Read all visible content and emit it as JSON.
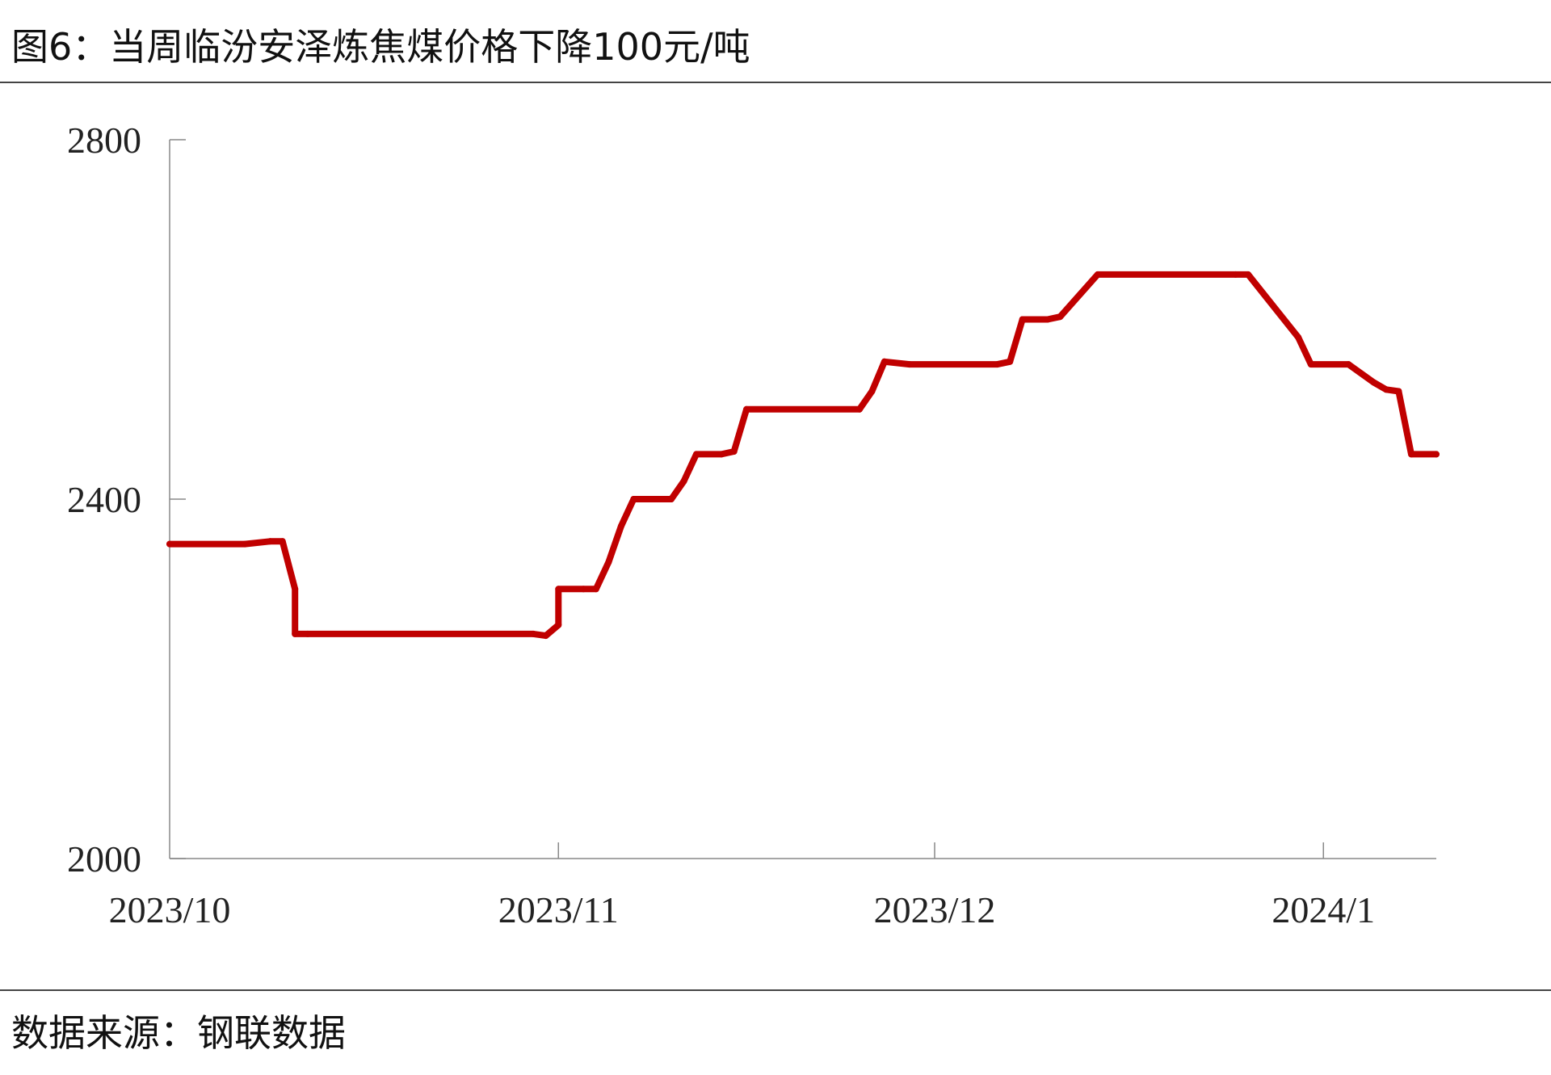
{
  "figure": {
    "title": "图6：当周临汾安泽炼焦煤价格下降100元/吨",
    "source": "数据来源：钢联数据"
  },
  "chart_data": {
    "type": "line",
    "title": "",
    "xlabel": "",
    "ylabel": "",
    "ylim": [
      2000,
      2800
    ],
    "yticks": [
      2000,
      2400,
      2800
    ],
    "xlim": [
      "2023-10-01",
      "2024-01-10"
    ],
    "xticks": [
      {
        "date": "2023-10-01",
        "label": "2023/10"
      },
      {
        "date": "2023-11-01",
        "label": "2023/11"
      },
      {
        "date": "2023-12-01",
        "label": "2023/12"
      },
      {
        "date": "2024-01-01",
        "label": "2024/1"
      }
    ],
    "grid": false,
    "legend": "none",
    "series": [
      {
        "color": "#c00000",
        "points": [
          [
            "2023-10-01",
            2350
          ],
          [
            "2023-10-07",
            2350
          ],
          [
            "2023-10-09",
            2353
          ],
          [
            "2023-10-10",
            2353
          ],
          [
            "2023-10-11",
            2300
          ],
          [
            "2023-10-11",
            2250
          ],
          [
            "2023-10-12",
            2250
          ],
          [
            "2023-10-30",
            2250
          ],
          [
            "2023-10-31",
            2248
          ],
          [
            "2023-11-01",
            2260
          ],
          [
            "2023-11-01",
            2300
          ],
          [
            "2023-11-03",
            2300
          ],
          [
            "2023-11-04",
            2300
          ],
          [
            "2023-11-05",
            2330
          ],
          [
            "2023-11-06",
            2370
          ],
          [
            "2023-11-07",
            2400
          ],
          [
            "2023-11-10",
            2400
          ],
          [
            "2023-11-11",
            2420
          ],
          [
            "2023-11-12",
            2450
          ],
          [
            "2023-11-14",
            2450
          ],
          [
            "2023-11-15",
            2453
          ],
          [
            "2023-11-16",
            2500
          ],
          [
            "2023-11-25",
            2500
          ],
          [
            "2023-11-26",
            2520
          ],
          [
            "2023-11-27",
            2553
          ],
          [
            "2023-11-29",
            2550
          ],
          [
            "2023-12-06",
            2550
          ],
          [
            "2023-12-07",
            2553
          ],
          [
            "2023-12-08",
            2600
          ],
          [
            "2023-12-10",
            2600
          ],
          [
            "2023-12-11",
            2603
          ],
          [
            "2023-12-14",
            2650
          ],
          [
            "2023-12-25",
            2650
          ],
          [
            "2023-12-26",
            2650
          ],
          [
            "2023-12-30",
            2580
          ],
          [
            "2023-12-31",
            2550
          ],
          [
            "2024-01-03",
            2550
          ],
          [
            "2024-01-05",
            2530
          ],
          [
            "2024-01-06",
            2522
          ],
          [
            "2024-01-07",
            2520
          ],
          [
            "2024-01-08",
            2450
          ],
          [
            "2024-01-10",
            2450
          ]
        ]
      }
    ]
  }
}
